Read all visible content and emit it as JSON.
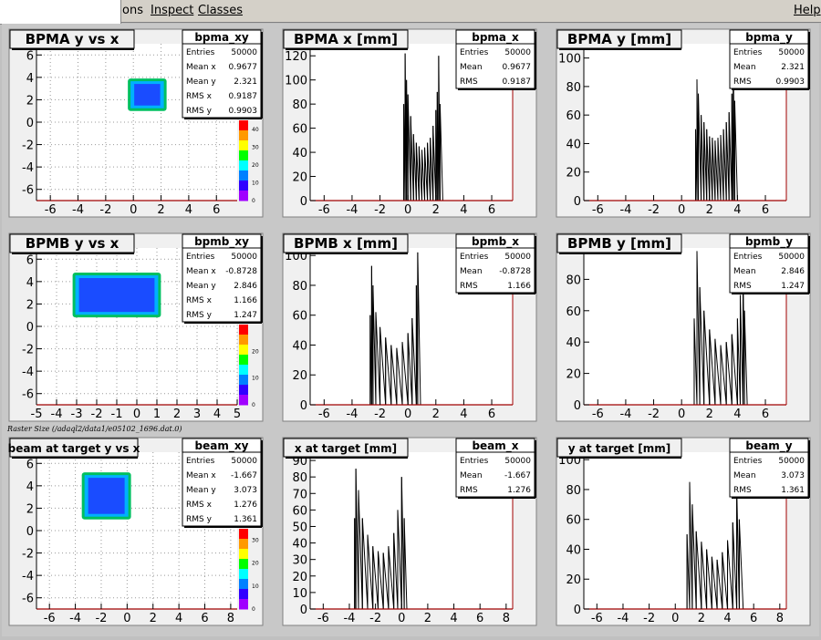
{
  "menu": {
    "options_label": "ons",
    "inspect_label": "Inspect",
    "classes_label": "Classes",
    "help_label": "Help"
  },
  "colors": {
    "frame_bg": "#f0f0f0",
    "axis": "#a00000",
    "hist": "#000000"
  },
  "caption": "Raster Size (/adaql2/data1/e05102_1696.dat.0)",
  "pads": [
    {
      "kind": "2d",
      "title": "BPMA y vs x",
      "stats_name": "bpma_xy",
      "stats": [
        [
          "Entries",
          "50000"
        ],
        [
          "Mean x",
          "0.9677"
        ],
        [
          "Mean y",
          "2.321"
        ],
        [
          "RMS x",
          "0.9187"
        ],
        [
          "RMS y",
          "0.9903"
        ]
      ],
      "x_ticks": [
        "-6",
        "-4",
        "-2",
        "0",
        "2",
        "4",
        "6"
      ],
      "y_ticks": [
        "-6",
        "-4",
        "-2",
        "0",
        "2",
        "4",
        "6"
      ],
      "palette_ticks": [
        "0",
        "10",
        "20",
        "30",
        "40"
      ]
    },
    {
      "kind": "1d",
      "title": "BPMA x [mm]",
      "stats_name": "bpma_x",
      "stats": [
        [
          "Entries",
          "50000"
        ],
        [
          "Mean",
          "0.9677"
        ],
        [
          "RMS",
          "0.9187"
        ]
      ],
      "x_ticks": [
        "-6",
        "-4",
        "-2",
        "0",
        "2",
        "4",
        "6"
      ],
      "y_ticks": [
        "0",
        "20",
        "40",
        "60",
        "80",
        "100",
        "120"
      ]
    },
    {
      "kind": "1d",
      "title": "BPMA y [mm]",
      "stats_name": "bpma_y",
      "stats": [
        [
          "Entries",
          "50000"
        ],
        [
          "Mean",
          "2.321"
        ],
        [
          "RMS",
          "0.9903"
        ]
      ],
      "x_ticks": [
        "-6",
        "-4",
        "-2",
        "0",
        "2",
        "4",
        "6"
      ],
      "y_ticks": [
        "0",
        "20",
        "40",
        "60",
        "80",
        "100"
      ]
    },
    {
      "kind": "2d",
      "title": "BPMB y vs x",
      "stats_name": "bpmb_xy",
      "stats": [
        [
          "Entries",
          "50000"
        ],
        [
          "Mean x",
          "-0.8728"
        ],
        [
          "Mean y",
          "2.846"
        ],
        [
          "RMS x",
          "1.166"
        ],
        [
          "RMS y",
          "1.247"
        ]
      ],
      "x_ticks": [
        "-5",
        "-4",
        "-3",
        "-2",
        "-1",
        "0",
        "1",
        "2",
        "3",
        "4",
        "5"
      ],
      "y_ticks": [
        "-6",
        "-4",
        "-2",
        "0",
        "2",
        "4",
        "6"
      ],
      "palette_ticks": [
        "0",
        "10",
        "20"
      ]
    },
    {
      "kind": "1d",
      "title": "BPMB x [mm]",
      "stats_name": "bpmb_x",
      "stats": [
        [
          "Entries",
          "50000"
        ],
        [
          "Mean",
          "-0.8728"
        ],
        [
          "RMS",
          "1.166"
        ]
      ],
      "x_ticks": [
        "-6",
        "-4",
        "-2",
        "0",
        "2",
        "4",
        "6"
      ],
      "y_ticks": [
        "0",
        "20",
        "40",
        "60",
        "80",
        "100"
      ]
    },
    {
      "kind": "1d",
      "title": "BPMB y [mm]",
      "stats_name": "bpmb_y",
      "stats": [
        [
          "Entries",
          "50000"
        ],
        [
          "Mean",
          "2.846"
        ],
        [
          "RMS",
          "1.247"
        ]
      ],
      "x_ticks": [
        "-6",
        "-4",
        "-2",
        "0",
        "2",
        "4",
        "6"
      ],
      "y_ticks": [
        "0",
        "20",
        "40",
        "60",
        "80",
        "100"
      ]
    },
    {
      "kind": "2d",
      "title": "beam at target y vs x",
      "stats_name": "beam_xy",
      "stats": [
        [
          "Entries",
          "50000"
        ],
        [
          "Mean x",
          "-1.667"
        ],
        [
          "Mean y",
          "3.073"
        ],
        [
          "RMS x",
          "1.276"
        ],
        [
          "RMS y",
          "1.361"
        ]
      ],
      "x_ticks": [
        "-6",
        "-4",
        "-2",
        "0",
        "2",
        "4",
        "6",
        "8"
      ],
      "y_ticks": [
        "-6",
        "-4",
        "-2",
        "0",
        "2",
        "4",
        "6"
      ],
      "palette_ticks": [
        "0",
        "10",
        "20",
        "30"
      ]
    },
    {
      "kind": "1d",
      "title": "x at target [mm]",
      "stats_name": "beam_x",
      "stats": [
        [
          "Entries",
          "50000"
        ],
        [
          "Mean",
          "-1.667"
        ],
        [
          "RMS",
          "1.276"
        ]
      ],
      "x_ticks": [
        "-6",
        "-4",
        "-2",
        "0",
        "2",
        "4",
        "6",
        "8"
      ],
      "y_ticks": [
        "0",
        "10",
        "20",
        "30",
        "40",
        "50",
        "60",
        "70",
        "80",
        "90"
      ]
    },
    {
      "kind": "1d",
      "title": "y at target [mm]",
      "stats_name": "beam_y",
      "stats": [
        [
          "Entries",
          "50000"
        ],
        [
          "Mean",
          "3.073"
        ],
        [
          "RMS",
          "1.361"
        ]
      ],
      "x_ticks": [
        "-6",
        "-4",
        "-2",
        "0",
        "2",
        "4",
        "6",
        "8"
      ],
      "y_ticks": [
        "0",
        "20",
        "40",
        "60",
        "80",
        "100"
      ]
    }
  ],
  "chart_data": [
    {
      "type": "heatmap",
      "title": "BPMA y vs x",
      "xlim": [
        -7,
        7.5
      ],
      "ylim": [
        -7,
        7
      ],
      "region_x": [
        -0.4,
        2.4
      ],
      "region_y": [
        1.0,
        3.9
      ],
      "zlim": [
        0,
        45
      ]
    },
    {
      "type": "bar",
      "title": "BPMA x [mm]",
      "xlim": [
        -7,
        7.5
      ],
      "ylim": [
        0,
        130
      ],
      "x": [
        -0.5,
        -0.3,
        -0.2,
        -0.1,
        0,
        0.2,
        0.4,
        0.6,
        0.8,
        1.0,
        1.2,
        1.4,
        1.6,
        1.8,
        2.0,
        2.1,
        2.2,
        2.3,
        2.5
      ],
      "values": [
        0,
        80,
        122,
        100,
        88,
        70,
        55,
        48,
        45,
        42,
        44,
        48,
        52,
        62,
        75,
        90,
        120,
        80,
        0
      ]
    },
    {
      "type": "bar",
      "title": "BPMA y [mm]",
      "xlim": [
        -7,
        7.5
      ],
      "ylim": [
        0,
        110
      ],
      "x": [
        0.8,
        1.0,
        1.1,
        1.2,
        1.4,
        1.6,
        1.8,
        2.0,
        2.2,
        2.4,
        2.6,
        2.8,
        3.0,
        3.2,
        3.4,
        3.6,
        3.7,
        3.8,
        4.0
      ],
      "values": [
        0,
        50,
        85,
        75,
        60,
        55,
        50,
        45,
        44,
        42,
        44,
        46,
        50,
        55,
        62,
        75,
        108,
        70,
        0
      ]
    },
    {
      "type": "heatmap",
      "title": "BPMB y vs x",
      "xlim": [
        -5,
        5
      ],
      "ylim": [
        -7,
        7
      ],
      "region_x": [
        -3.2,
        1.2
      ],
      "region_y": [
        0.8,
        4.8
      ],
      "zlim": [
        0,
        30
      ]
    },
    {
      "type": "bar",
      "title": "BPMB x [mm]",
      "xlim": [
        -7,
        7.5
      ],
      "ylim": [
        0,
        105
      ],
      "x": [
        -2.9,
        -2.7,
        -2.6,
        -2.5,
        -2.3,
        -2.0,
        -1.6,
        -1.2,
        -0.8,
        -0.4,
        0,
        0.3,
        0.6,
        0.7,
        0.9
      ],
      "values": [
        0,
        60,
        93,
        80,
        62,
        52,
        45,
        40,
        38,
        42,
        48,
        58,
        80,
        102,
        0
      ]
    },
    {
      "type": "bar",
      "title": "BPMB y [mm]",
      "xlim": [
        -7,
        7.5
      ],
      "ylim": [
        0,
        100
      ],
      "x": [
        0.7,
        0.9,
        1.1,
        1.3,
        1.6,
        2.0,
        2.4,
        2.8,
        3.2,
        3.6,
        4.0,
        4.2,
        4.4,
        4.5,
        4.7
      ],
      "values": [
        0,
        55,
        98,
        75,
        60,
        48,
        42,
        38,
        40,
        45,
        55,
        70,
        93,
        60,
        0
      ]
    },
    {
      "type": "heatmap",
      "title": "beam at target y vs x",
      "xlim": [
        -7,
        8.5
      ],
      "ylim": [
        -7,
        7
      ],
      "region_x": [
        -3.5,
        0.3
      ],
      "region_y": [
        1.0,
        5.2
      ],
      "zlim": [
        0,
        35
      ]
    },
    {
      "type": "bar",
      "title": "x at target [mm]",
      "xlim": [
        -7,
        8.5
      ],
      "ylim": [
        0,
        95
      ],
      "x": [
        -3.8,
        -3.6,
        -3.5,
        -3.3,
        -3.0,
        -2.6,
        -2.2,
        -1.8,
        -1.4,
        -1.0,
        -0.6,
        -0.3,
        0,
        0.2,
        0.4
      ],
      "values": [
        0,
        55,
        85,
        72,
        55,
        45,
        38,
        35,
        34,
        38,
        46,
        60,
        80,
        55,
        0
      ]
    },
    {
      "type": "bar",
      "title": "y at target [mm]",
      "xlim": [
        -7,
        8.5
      ],
      "ylim": [
        0,
        105
      ],
      "x": [
        0.6,
        0.9,
        1.1,
        1.3,
        1.6,
        2.0,
        2.4,
        2.8,
        3.2,
        3.6,
        4.0,
        4.4,
        4.7,
        4.9,
        5.2
      ],
      "values": [
        0,
        50,
        85,
        70,
        52,
        45,
        40,
        35,
        33,
        38,
        46,
        58,
        82,
        60,
        0
      ]
    }
  ]
}
